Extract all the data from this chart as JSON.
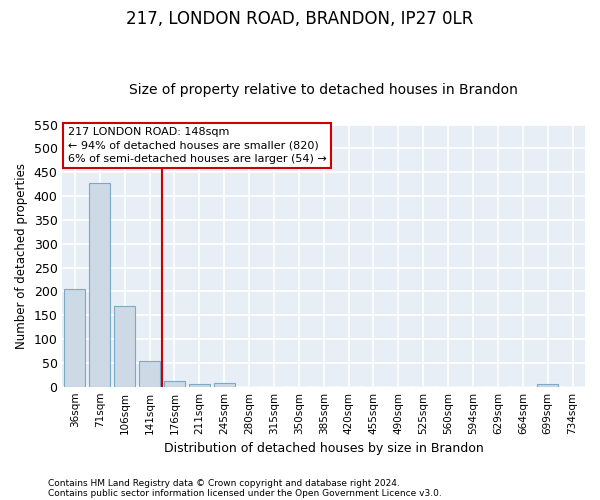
{
  "title_line1": "217, LONDON ROAD, BRANDON, IP27 0LR",
  "title_line2": "Size of property relative to detached houses in Brandon",
  "xlabel": "Distribution of detached houses by size in Brandon",
  "ylabel": "Number of detached properties",
  "bar_labels": [
    "36sqm",
    "71sqm",
    "106sqm",
    "141sqm",
    "176sqm",
    "211sqm",
    "245sqm",
    "280sqm",
    "315sqm",
    "350sqm",
    "385sqm",
    "420sqm",
    "455sqm",
    "490sqm",
    "525sqm",
    "560sqm",
    "594sqm",
    "629sqm",
    "664sqm",
    "699sqm",
    "734sqm"
  ],
  "bar_values": [
    205,
    428,
    170,
    54,
    12,
    5,
    8,
    0,
    0,
    0,
    0,
    0,
    0,
    0,
    0,
    0,
    0,
    0,
    0,
    5,
    0
  ],
  "bar_color": "#cdd9e5",
  "bar_edge_color": "#7aaac8",
  "ylim": [
    0,
    550
  ],
  "yticks": [
    0,
    50,
    100,
    150,
    200,
    250,
    300,
    350,
    400,
    450,
    500,
    550
  ],
  "annotation_title": "217 LONDON ROAD: 148sqm",
  "annotation_line1": "← 94% of detached houses are smaller (820)",
  "annotation_line2": "6% of semi-detached houses are larger (54) →",
  "vline_x_idx": 3,
  "footnote1": "Contains HM Land Registry data © Crown copyright and database right 2024.",
  "footnote2": "Contains public sector information licensed under the Open Government Licence v3.0.",
  "bg_color": "#ffffff",
  "plot_bg_color": "#e8eef5",
  "grid_color": "#ffffff",
  "vline_color": "#cc0000",
  "annotation_box_edgecolor": "#cc0000",
  "title1_fontsize": 12,
  "title2_fontsize": 10,
  "bar_width": 0.85
}
